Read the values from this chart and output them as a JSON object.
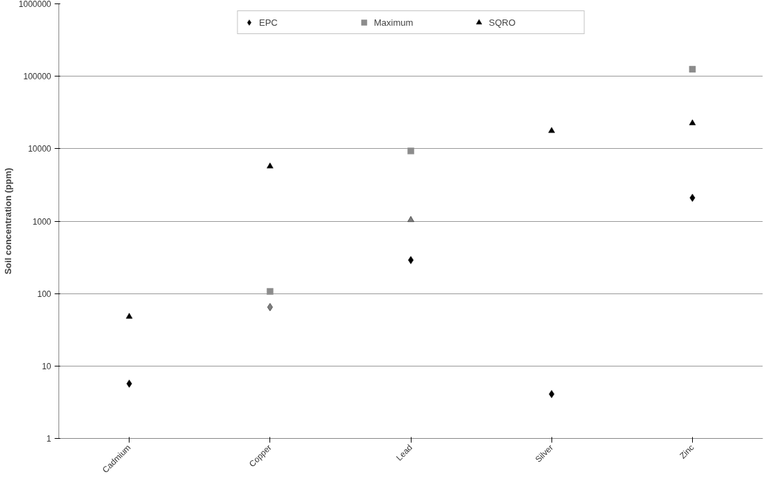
{
  "chart_data": {
    "type": "scatter",
    "ylabel": "Soil concentration (ppm)",
    "categories": [
      "Cadmium",
      "Copper",
      "Lead",
      "Silver",
      "Zinc"
    ],
    "series": [
      {
        "name": "EPC",
        "color": "#000000",
        "marker": "diamond",
        "colors": [
          "#000000",
          "#7f7f7f",
          "#000000",
          "#000000",
          "#000000"
        ],
        "values": [
          5.7,
          65,
          290,
          4.1,
          2100
        ]
      },
      {
        "name": "Maximum",
        "color": "#8c8c8c",
        "marker": "square",
        "values": [
          null,
          107,
          9300,
          null,
          125000
        ]
      },
      {
        "name": "SQRO",
        "color": "#000000",
        "marker": "triangle",
        "colors": [
          "#000000",
          "#000000",
          "#7f7f7f",
          "#000000",
          "#000000"
        ],
        "values": [
          48,
          5700,
          1040,
          17600,
          22500
        ]
      }
    ],
    "log": "y",
    "ylim": [
      1,
      1000000
    ],
    "yticks": [
      1,
      10,
      100,
      1000,
      10000,
      100000,
      1000000
    ],
    "grid": "y",
    "legend": "top"
  }
}
